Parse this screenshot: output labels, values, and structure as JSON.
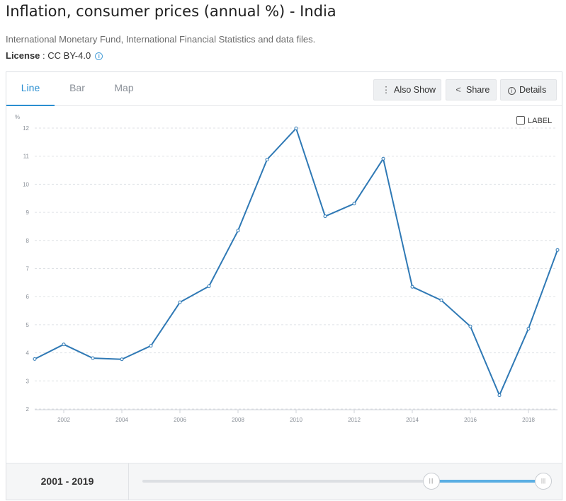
{
  "header": {
    "title": "Inflation, consumer prices (annual %) - India",
    "source": "International Monetary Fund, International Financial Statistics and data files.",
    "license_label": "License",
    "license_sep": " : ",
    "license_value": "CC BY-4.0",
    "info_icon": "i"
  },
  "tabs": [
    {
      "label": "Line",
      "active": true
    },
    {
      "label": "Bar",
      "active": false
    },
    {
      "label": "Map",
      "active": false
    }
  ],
  "toolbar": {
    "also_show": "Also Show",
    "also_show_icon": "⋮",
    "share": "Share",
    "share_icon": "<",
    "details": "Details",
    "details_icon": "i"
  },
  "label_toggle": "LABEL",
  "footer": {
    "range_label": "2001 - 2019",
    "range_start_fraction": 0.72,
    "range_end_fraction": 1.0,
    "handle_glyph": "|||"
  },
  "colors": {
    "line": "#2f79b5",
    "accent": "#2b8fd1",
    "slider_fill": "#5aaee3"
  },
  "chart_data": {
    "type": "line",
    "title": "",
    "xlabel": "",
    "ylabel": "%",
    "x": [
      2001,
      2002,
      2003,
      2004,
      2005,
      2006,
      2007,
      2008,
      2009,
      2010,
      2011,
      2012,
      2013,
      2014,
      2015,
      2016,
      2017,
      2018,
      2019
    ],
    "series": [
      {
        "values": [
          3.78,
          4.3,
          3.81,
          3.77,
          4.25,
          5.8,
          6.37,
          8.35,
          10.88,
          11.99,
          8.86,
          9.31,
          10.91,
          6.35,
          5.87,
          4.94,
          2.49,
          4.86,
          7.66
        ]
      }
    ],
    "xticks": [
      2002,
      2004,
      2006,
      2008,
      2010,
      2012,
      2014,
      2016,
      2018
    ],
    "yticks": [
      2,
      3,
      4,
      5,
      6,
      7,
      8,
      9,
      10,
      11,
      12
    ],
    "xlim": [
      2001,
      2019
    ],
    "ylim": [
      2,
      12
    ],
    "grid": true,
    "legend": "none"
  }
}
